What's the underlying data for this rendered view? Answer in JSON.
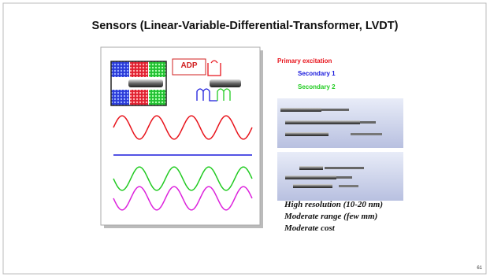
{
  "header": {
    "title": "Sensors (Linear-Variable-Differential-Transformer, LVDT)"
  },
  "diagram": {
    "logo": "ADP"
  },
  "legend": [
    {
      "label": "Primary excitation",
      "color": "#e8141c"
    },
    {
      "label": "Secondary 1",
      "color": "#1a1adc"
    },
    {
      "label": "Secondary 2",
      "color": "#22cc22"
    }
  ],
  "notes": [
    "High resolution (10-20 nm)",
    "Moderate range (few mm)",
    "Moderate cost"
  ],
  "page_number": "61"
}
